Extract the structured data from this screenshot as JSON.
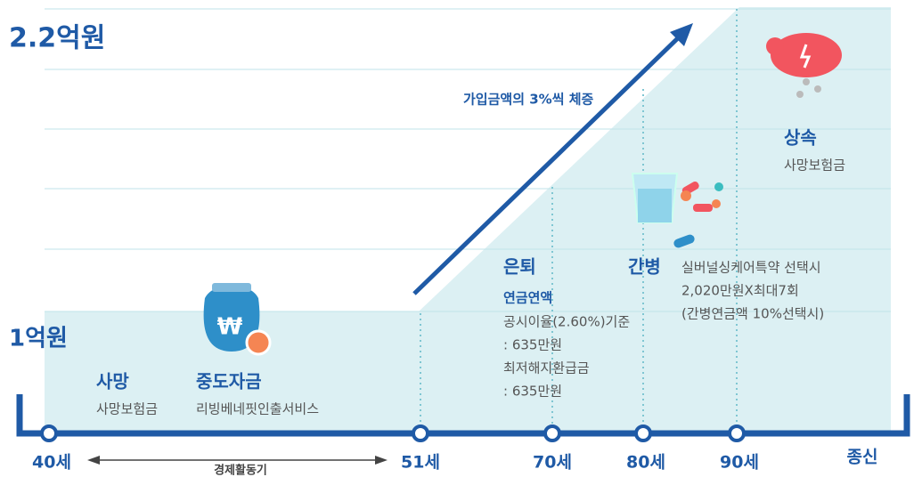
{
  "levels": {
    "top": "2.2억원",
    "base": "1억원"
  },
  "increase_note": "가입금액의 3%씩 체증",
  "timeline": {
    "ages": [
      "40세",
      "51세",
      "70세",
      "80세",
      "90세",
      "종신"
    ],
    "period": "경제활동기"
  },
  "stages": {
    "death": {
      "title": "사망",
      "desc": "사망보험금"
    },
    "midterm": {
      "title": "중도자금",
      "desc": "리빙베네핏인출서비스"
    },
    "retire": {
      "title": "은퇴",
      "subtitle": "연금연액",
      "lines": [
        "공시이율(2.60%)기준",
        ": 635만원",
        "최저해지환급금",
        ": 635만원"
      ]
    },
    "care": {
      "title": "간병",
      "lines": [
        "실버널싱케어특약 선택시",
        "2,020만원X최대7회",
        "(간병연금액 10%선택시)"
      ]
    },
    "inherit": {
      "title": "상속",
      "desc": "사망보험금"
    }
  }
}
